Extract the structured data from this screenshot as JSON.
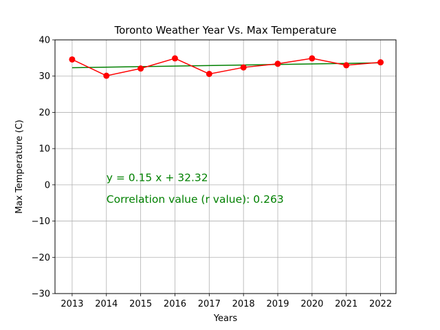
{
  "chart_data": {
    "type": "line",
    "title": "Toronto Weather Year Vs. Max Temperature",
    "xlabel": "Years",
    "ylabel": "Max Temperature (C)",
    "x": [
      2013,
      2014,
      2015,
      2016,
      2017,
      2018,
      2019,
      2020,
      2021,
      2022
    ],
    "xlim": [
      2012.5,
      2022.45
    ],
    "ylim": [
      -30,
      40
    ],
    "xticks": [
      2013,
      2014,
      2015,
      2016,
      2017,
      2018,
      2019,
      2020,
      2021,
      2022
    ],
    "yticks": [
      -30,
      -20,
      -10,
      0,
      10,
      20,
      30,
      40
    ],
    "grid": true,
    "series": [
      {
        "values": [
          34.6,
          30.1,
          32.1,
          34.9,
          30.6,
          32.4,
          33.4,
          34.9,
          33.0,
          33.8
        ],
        "color": "#ff0000",
        "marker": "circle"
      }
    ],
    "regression": {
      "slope": 0.15,
      "intercept": 32.32,
      "start": 32.32,
      "end": 33.67,
      "color": "#008000"
    },
    "annotations": [
      {
        "text": "y = 0.15 x + 32.32",
        "x": 2014,
        "y": 1.0,
        "color": "#008000"
      },
      {
        "text": "Correlation value (r value): 0.263",
        "x": 2014,
        "y": -5.0,
        "color": "#008000"
      }
    ]
  }
}
